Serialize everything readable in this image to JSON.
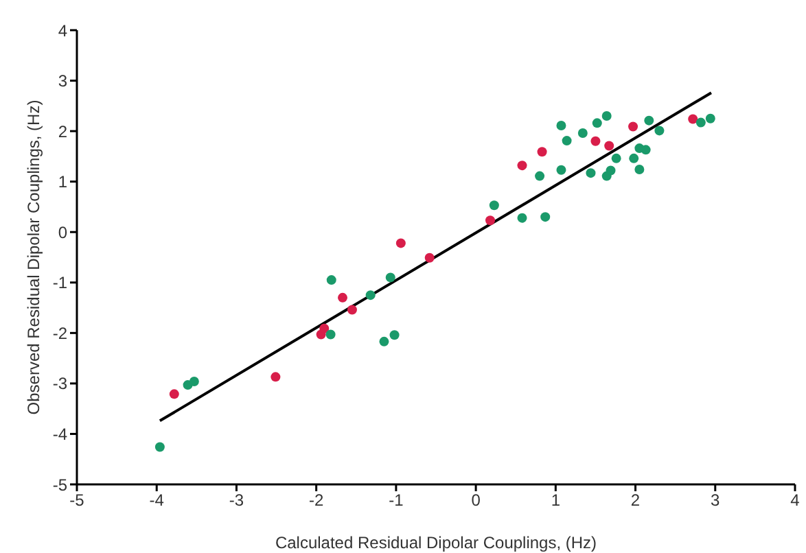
{
  "chart_data": {
    "type": "scatter",
    "xlabel": "Calculated Residual Dipolar Couplings, (Hz)",
    "ylabel": "Observed Residual Dipolar Couplings, (Hz)",
    "xlim": [
      -5,
      4
    ],
    "ylim": [
      -5,
      4
    ],
    "xticks": [
      -5,
      -4,
      -3,
      -2,
      -1,
      0,
      1,
      2,
      3,
      4
    ],
    "yticks": [
      -5,
      -4,
      -3,
      -2,
      -1,
      0,
      1,
      2,
      3,
      4
    ],
    "grid": false,
    "legend": false,
    "marker": "circle",
    "series": [
      {
        "color": "#d81e4a",
        "x": [
          -3.78,
          -2.51,
          -1.94,
          -1.9,
          -1.67,
          -1.55,
          -0.94,
          -0.58,
          0.18,
          0.58,
          0.83,
          1.5,
          1.67,
          1.97,
          2.72
        ],
        "values": [
          -3.21,
          -2.87,
          -2.03,
          -1.91,
          -1.3,
          -1.54,
          -0.22,
          -0.51,
          0.23,
          1.32,
          1.59,
          1.8,
          1.71,
          2.09,
          2.24
        ]
      },
      {
        "color": "#1a9a6a",
        "x": [
          -3.96,
          -3.61,
          -3.53,
          -1.81,
          -1.82,
          -1.32,
          -1.07,
          -1.15,
          -1.02,
          0.23,
          0.58,
          0.87,
          0.8,
          1.07,
          1.14,
          1.07,
          1.34,
          1.52,
          1.64,
          1.44,
          1.64,
          1.69,
          1.76,
          1.98,
          2.05,
          2.05,
          2.13,
          2.17,
          2.3,
          2.82,
          2.94
        ],
        "values": [
          -4.26,
          -3.03,
          -2.96,
          -0.95,
          -2.03,
          -1.25,
          -0.9,
          -2.17,
          -2.04,
          0.53,
          0.28,
          0.3,
          1.11,
          2.11,
          1.81,
          1.23,
          1.96,
          2.16,
          2.3,
          1.17,
          1.11,
          1.22,
          1.46,
          1.46,
          1.24,
          1.66,
          1.63,
          2.21,
          2.01,
          2.17,
          2.25
        ]
      },
      {
        "type": "line",
        "color": "#000000",
        "line_style": "solid",
        "marker": "none",
        "x": [
          -3.96,
          2.95
        ],
        "values": [
          -3.74,
          2.76
        ]
      }
    ]
  }
}
